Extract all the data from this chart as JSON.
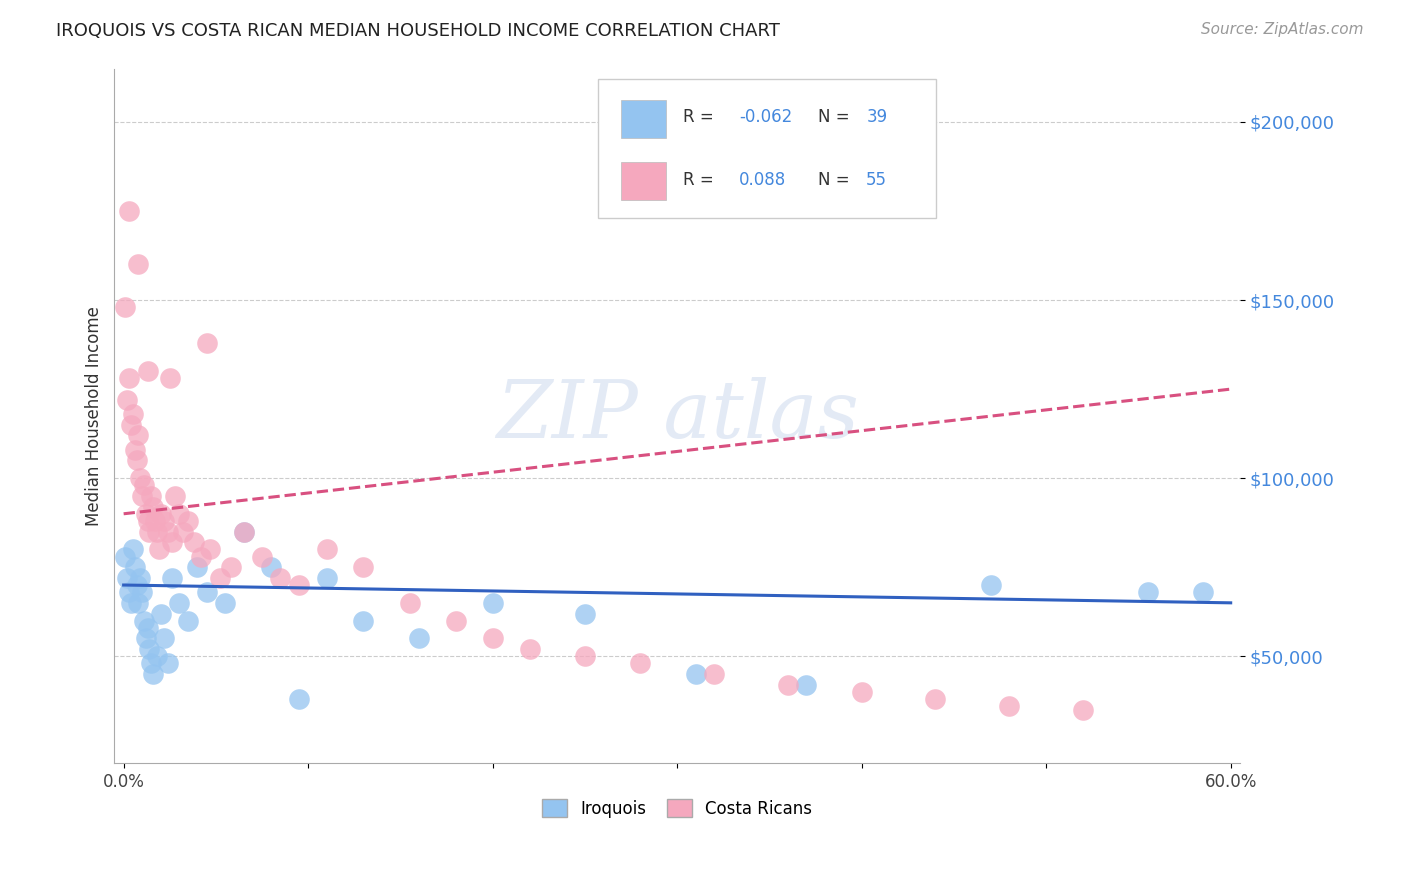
{
  "title": "IROQUOIS VS COSTA RICAN MEDIAN HOUSEHOLD INCOME CORRELATION CHART",
  "source": "Source: ZipAtlas.com",
  "ylabel": "Median Household Income",
  "watermark": "ZIPAtlas",
  "iroquois_color": "#94c4f0",
  "costarican_color": "#f5a8be",
  "iroquois_line_color": "#3060c0",
  "costarican_line_color": "#d85080",
  "title_color": "#222222",
  "ytick_color": "#4488dd",
  "xlim": [
    0.0,
    0.6
  ],
  "ylim": [
    20000,
    215000
  ],
  "ytick_vals": [
    50000,
    100000,
    150000,
    200000
  ],
  "ytick_labels": [
    "$50,000",
    "$100,000",
    "$150,000",
    "$200,000"
  ],
  "xtick_positions": [
    0.0,
    0.1,
    0.2,
    0.3,
    0.4,
    0.5,
    0.6
  ],
  "xtick_labels": [
    "0.0%",
    "",
    "",
    "",
    "",
    "",
    "60.0%"
  ],
  "legend_R1": "R = -0.062",
  "legend_N1": "N = 39",
  "legend_R2": "R =  0.088",
  "legend_N2": "N = 55",
  "iroquois_x": [
    0.001,
    0.002,
    0.003,
    0.004,
    0.005,
    0.006,
    0.007,
    0.008,
    0.009,
    0.01,
    0.011,
    0.012,
    0.013,
    0.014,
    0.015,
    0.016,
    0.018,
    0.02,
    0.022,
    0.024,
    0.026,
    0.03,
    0.035,
    0.04,
    0.045,
    0.055,
    0.065,
    0.08,
    0.095,
    0.11,
    0.13,
    0.16,
    0.2,
    0.25,
    0.31,
    0.37,
    0.47,
    0.555,
    0.585
  ],
  "iroquois_y": [
    78000,
    72000,
    68000,
    65000,
    80000,
    75000,
    70000,
    65000,
    72000,
    68000,
    60000,
    55000,
    58000,
    52000,
    48000,
    45000,
    50000,
    62000,
    55000,
    48000,
    72000,
    65000,
    60000,
    75000,
    68000,
    65000,
    85000,
    75000,
    38000,
    72000,
    60000,
    55000,
    65000,
    62000,
    45000,
    42000,
    70000,
    68000,
    68000
  ],
  "costarican_x": [
    0.001,
    0.002,
    0.003,
    0.004,
    0.005,
    0.006,
    0.007,
    0.008,
    0.009,
    0.01,
    0.011,
    0.012,
    0.013,
    0.014,
    0.015,
    0.016,
    0.017,
    0.018,
    0.019,
    0.02,
    0.022,
    0.024,
    0.026,
    0.028,
    0.03,
    0.032,
    0.035,
    0.038,
    0.042,
    0.047,
    0.052,
    0.058,
    0.065,
    0.075,
    0.085,
    0.095,
    0.11,
    0.13,
    0.155,
    0.18,
    0.2,
    0.22,
    0.25,
    0.28,
    0.32,
    0.36,
    0.4,
    0.44,
    0.48,
    0.52,
    0.003,
    0.008,
    0.013,
    0.025,
    0.045
  ],
  "costarican_y": [
    148000,
    122000,
    128000,
    115000,
    118000,
    108000,
    105000,
    112000,
    100000,
    95000,
    98000,
    90000,
    88000,
    85000,
    95000,
    92000,
    88000,
    85000,
    80000,
    90000,
    88000,
    85000,
    82000,
    95000,
    90000,
    85000,
    88000,
    82000,
    78000,
    80000,
    72000,
    75000,
    85000,
    78000,
    72000,
    70000,
    80000,
    75000,
    65000,
    60000,
    55000,
    52000,
    50000,
    48000,
    45000,
    42000,
    40000,
    38000,
    36000,
    35000,
    175000,
    160000,
    130000,
    128000,
    138000
  ],
  "iroq_line_x0": 0.0,
  "iroq_line_x1": 0.6,
  "iroq_line_y0": 70000,
  "iroq_line_y1": 65000,
  "costa_line_x0": 0.0,
  "costa_line_x1": 0.6,
  "costa_line_y0": 90000,
  "costa_line_y1": 125000
}
